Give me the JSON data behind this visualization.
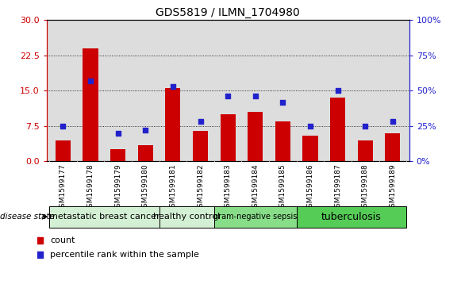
{
  "title": "GDS5819 / ILMN_1704980",
  "samples": [
    "GSM1599177",
    "GSM1599178",
    "GSM1599179",
    "GSM1599180",
    "GSM1599181",
    "GSM1599182",
    "GSM1599183",
    "GSM1599184",
    "GSM1599185",
    "GSM1599186",
    "GSM1599187",
    "GSM1599188",
    "GSM1599189"
  ],
  "counts": [
    4.5,
    24.0,
    2.5,
    3.5,
    15.5,
    6.5,
    10.0,
    10.5,
    8.5,
    5.5,
    13.5,
    4.5,
    6.0
  ],
  "percentiles": [
    25,
    57,
    20,
    22,
    53,
    28,
    46,
    46,
    42,
    25,
    50,
    25,
    28
  ],
  "bar_color": "#cc0000",
  "dot_color": "#2222cc",
  "ylim_left": [
    0,
    30
  ],
  "ylim_right": [
    0,
    100
  ],
  "yticks_left": [
    0,
    7.5,
    15,
    22.5,
    30
  ],
  "yticks_right": [
    0,
    25,
    50,
    75,
    100
  ],
  "disease_groups": [
    {
      "label": "metastatic breast cancer",
      "start": 0,
      "end": 3,
      "color": "#d4f0d4",
      "fontsize": 8
    },
    {
      "label": "healthy control",
      "start": 4,
      "end": 5,
      "color": "#d4f0d4",
      "fontsize": 8
    },
    {
      "label": "gram-negative sepsis",
      "start": 6,
      "end": 8,
      "color": "#88dd88",
      "fontsize": 7
    },
    {
      "label": "tuberculosis",
      "start": 9,
      "end": 12,
      "color": "#55cc55",
      "fontsize": 9
    }
  ],
  "legend_count_label": "count",
  "legend_pct_label": "percentile rank within the sample",
  "disease_state_label": "disease state",
  "tick_color_left": "#cc0000",
  "tick_color_right": "#2222cc",
  "plot_bg_color": "#dddddd",
  "xtick_bg_color": "#cccccc"
}
